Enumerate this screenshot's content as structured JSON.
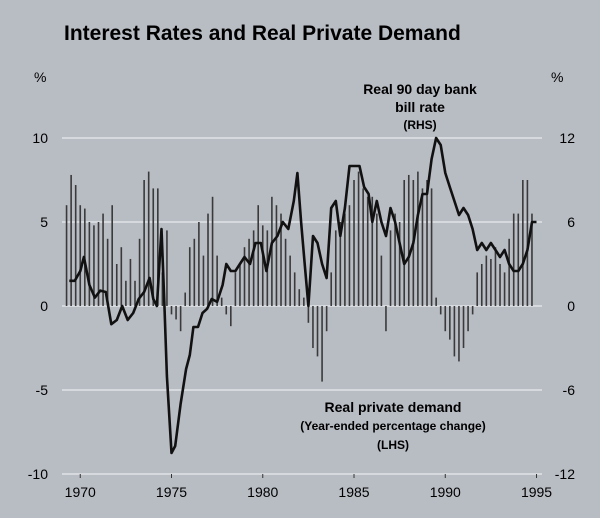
{
  "chart_data": {
    "type": "bar+line",
    "title": "Interest Rates and Real Private Demand",
    "left_axis": {
      "unit_label": "%",
      "ylim": [
        -10,
        10
      ],
      "ticks": [
        10,
        5,
        0,
        -5,
        -10
      ],
      "tick_labels": [
        "10",
        "5",
        "0",
        "-5",
        "-10"
      ]
    },
    "right_axis": {
      "unit_label": "%",
      "ylim": [
        -12,
        12
      ],
      "ticks": [
        12,
        6,
        0,
        -6,
        -12
      ],
      "tick_labels": [
        "12",
        "6",
        "0",
        "-6",
        "-12"
      ]
    },
    "x_axis": {
      "xlim": [
        1969.0,
        1995.3
      ],
      "ticks": [
        1970,
        1975,
        1980,
        1985,
        1990,
        1995
      ],
      "tick_labels": [
        "1970",
        "1975",
        "1980",
        "1985",
        "1990",
        "1995"
      ]
    },
    "grid": true,
    "series": [
      {
        "name": "Real private demand",
        "axis": "left",
        "kind": "bar",
        "annotation_lines": [
          "Real private demand",
          "(Year-ended percentage change)",
          "(LHS)"
        ],
        "x": [
          1969.25,
          1969.5,
          1969.75,
          1970.0,
          1970.25,
          1970.5,
          1970.75,
          1971.0,
          1971.25,
          1971.5,
          1971.75,
          1972.0,
          1972.25,
          1972.5,
          1972.75,
          1973.0,
          1973.25,
          1973.5,
          1973.75,
          1974.0,
          1974.25,
          1974.5,
          1974.75,
          1975.0,
          1975.25,
          1975.5,
          1975.75,
          1976.0,
          1976.25,
          1976.5,
          1976.75,
          1977.0,
          1977.25,
          1977.5,
          1977.75,
          1978.0,
          1978.25,
          1978.5,
          1978.75,
          1979.0,
          1979.25,
          1979.5,
          1979.75,
          1980.0,
          1980.25,
          1980.5,
          1980.75,
          1981.0,
          1981.25,
          1981.5,
          1981.75,
          1982.0,
          1982.25,
          1982.5,
          1982.75,
          1983.0,
          1983.25,
          1983.5,
          1983.75,
          1984.0,
          1984.25,
          1984.5,
          1984.75,
          1985.0,
          1985.25,
          1985.5,
          1985.75,
          1986.0,
          1986.25,
          1986.5,
          1986.75,
          1987.0,
          1987.25,
          1987.5,
          1987.75,
          1988.0,
          1988.25,
          1988.5,
          1988.75,
          1989.0,
          1989.25,
          1989.5,
          1989.75,
          1990.0,
          1990.25,
          1990.5,
          1990.75,
          1991.0,
          1991.25,
          1991.5,
          1991.75,
          1992.0,
          1992.25,
          1992.5,
          1992.75,
          1993.0,
          1993.25,
          1993.5,
          1993.75,
          1994.0,
          1994.25,
          1994.5,
          1994.75
        ],
        "values": [
          6.0,
          7.8,
          7.2,
          6.0,
          5.8,
          5.0,
          4.8,
          5.0,
          5.5,
          4.0,
          6.0,
          2.5,
          3.5,
          1.5,
          2.8,
          1.5,
          4.0,
          7.5,
          8.0,
          7.0,
          7.0,
          2.0,
          4.5,
          -0.5,
          -0.8,
          -1.5,
          0.8,
          3.5,
          4.0,
          5.0,
          3.0,
          5.5,
          6.5,
          3.0,
          0.5,
          -0.5,
          -1.2,
          2.0,
          2.5,
          3.5,
          4.0,
          4.5,
          6.0,
          4.8,
          4.5,
          6.5,
          6.0,
          5.5,
          4.0,
          3.0,
          2.0,
          1.0,
          0.5,
          -1.0,
          -2.5,
          -3.0,
          -4.5,
          -1.5,
          2.0,
          4.5,
          5.0,
          5.5,
          6.0,
          7.5,
          8.0,
          7.0,
          6.5,
          6.5,
          5.5,
          3.0,
          -1.5,
          4.5,
          5.5,
          5.0,
          7.5,
          7.8,
          7.5,
          8.0,
          7.0,
          7.5,
          7.0,
          0.5,
          -0.5,
          -1.5,
          -2.0,
          -3.0,
          -3.3,
          -2.5,
          -1.5,
          -0.5,
          2.0,
          2.5,
          3.0,
          2.8,
          3.5,
          2.5,
          2.0,
          4.0,
          5.5,
          5.5,
          7.5,
          7.5,
          5.5
        ]
      },
      {
        "name": "Real 90 day bank bill rate",
        "axis": "right",
        "kind": "line",
        "annotation_lines": [
          "Real 90 day bank",
          "bill rate",
          "(RHS)"
        ],
        "x": [
          1969.4,
          1969.7,
          1970.0,
          1970.2,
          1970.5,
          1970.8,
          1971.1,
          1971.4,
          1971.7,
          1972.0,
          1972.3,
          1972.6,
          1972.9,
          1973.2,
          1973.5,
          1973.8,
          1974.0,
          1974.2,
          1974.45,
          1974.6,
          1974.75,
          1975.0,
          1975.2,
          1975.5,
          1975.8,
          1976.0,
          1976.2,
          1976.45,
          1976.7,
          1976.95,
          1977.2,
          1977.5,
          1977.8,
          1978.0,
          1978.25,
          1978.5,
          1978.75,
          1979.0,
          1979.3,
          1979.6,
          1979.9,
          1980.2,
          1980.5,
          1980.8,
          1981.1,
          1981.4,
          1981.7,
          1981.9,
          1982.1,
          1982.3,
          1982.5,
          1982.75,
          1983.0,
          1983.25,
          1983.5,
          1983.75,
          1984.0,
          1984.25,
          1984.5,
          1984.75,
          1985.0,
          1985.3,
          1985.55,
          1985.8,
          1986.0,
          1986.25,
          1986.5,
          1986.75,
          1987.0,
          1987.25,
          1987.5,
          1987.75,
          1988.0,
          1988.25,
          1988.5,
          1988.75,
          1989.0,
          1989.25,
          1989.5,
          1989.75,
          1990.0,
          1990.25,
          1990.5,
          1990.75,
          1991.0,
          1991.25,
          1991.5,
          1991.75,
          1992.0,
          1992.25,
          1992.5,
          1992.75,
          1993.0,
          1993.25,
          1993.5,
          1993.75,
          1994.0,
          1994.25,
          1994.5,
          1994.75,
          1995.0
        ],
        "values": [
          1.8,
          1.8,
          2.5,
          3.5,
          1.5,
          0.6,
          1.1,
          1.0,
          -1.3,
          -1.0,
          0.0,
          -1.0,
          -0.5,
          0.5,
          1.0,
          2.0,
          0.5,
          0.0,
          5.5,
          0.5,
          -5.0,
          -10.5,
          -10.0,
          -7.0,
          -4.5,
          -3.5,
          -1.5,
          -1.5,
          -0.5,
          -0.2,
          0.5,
          0.3,
          1.5,
          3.0,
          2.5,
          2.5,
          3.0,
          3.5,
          3.0,
          4.5,
          4.5,
          2.5,
          4.5,
          5.0,
          6.0,
          5.5,
          7.5,
          9.5,
          6.0,
          3.0,
          0.0,
          5.0,
          4.5,
          3.0,
          2.0,
          7.0,
          7.5,
          5.0,
          7.0,
          10.0,
          10.0,
          10.0,
          8.5,
          8.0,
          6.0,
          7.5,
          6.0,
          5.0,
          7.0,
          6.0,
          4.5,
          3.0,
          3.5,
          4.5,
          6.5,
          8.0,
          8.0,
          10.5,
          12.0,
          11.5,
          9.5,
          8.5,
          7.5,
          6.5,
          7.0,
          6.5,
          5.5,
          4.0,
          4.5,
          4.0,
          4.5,
          4.0,
          3.5,
          4.0,
          3.0,
          2.5,
          2.5,
          3.0,
          4.0,
          6.0,
          6.0
        ]
      }
    ]
  }
}
